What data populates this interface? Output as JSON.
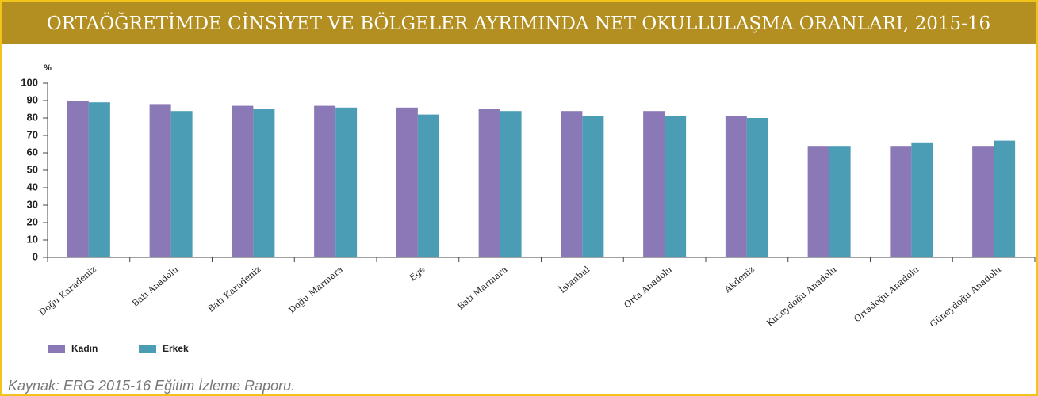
{
  "chart_data": {
    "type": "bar",
    "title": "ORTAÖĞRETİMDE CİNSİYET VE BÖLGELER AYRIMINDA NET OKULLULAŞMA ORANLARI, 2015-16",
    "y_label": "%",
    "source": "Kaynak: ERG 2015-16 Eğitim İzleme Raporu.",
    "categories": [
      "Doğu Karadeniz",
      "Batı Anadolu",
      "Batı Karadeniz",
      "Doğu Marmara",
      "Ege",
      "Batı Marmara",
      "İstanbul",
      "Orta Anadolu",
      "Akdeniz",
      "Kuzeydoğu Anadolu",
      "Ortadoğu Anadolu",
      "Güneydoğu Anadolu"
    ],
    "series": [
      {
        "name": "Kadın",
        "color": "#8b78b6",
        "values": [
          90,
          88,
          87,
          87,
          86,
          85,
          84,
          84,
          81,
          64,
          64,
          64
        ]
      },
      {
        "name": "Erkek",
        "color": "#4b9db6",
        "values": [
          89,
          84,
          85,
          86,
          82,
          84,
          81,
          81,
          80,
          64,
          66,
          67
        ]
      }
    ],
    "ylim": [
      0,
      100
    ],
    "yticks": [
      0,
      10,
      20,
      30,
      40,
      50,
      60,
      70,
      80,
      90,
      100
    ],
    "legend": "bottom-left"
  }
}
